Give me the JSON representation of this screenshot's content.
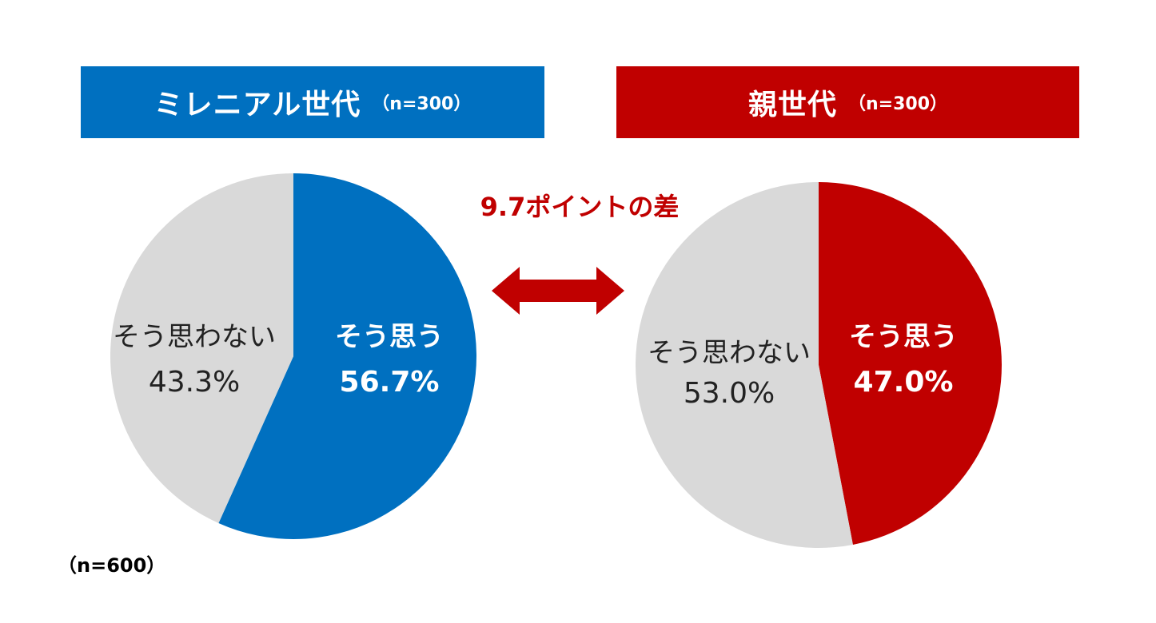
{
  "colors": {
    "millennial": "#0070c0",
    "parent": "#c00000",
    "no": "#d9d9d9",
    "arrow": "#c00000",
    "label_dark": "#222222",
    "label_light": "#ffffff"
  },
  "groups": {
    "left": {
      "title": "ミレニアル世代",
      "n": "（n=300）"
    },
    "right": {
      "title": "親世代",
      "n": "（n=300）"
    }
  },
  "difference_label": "9.7ポイントの差",
  "total_n": "（n=600）",
  "chart_data": [
    {
      "type": "pie",
      "title": "ミレニアル世代",
      "slices": [
        {
          "label": "そう思う",
          "value": 56.7,
          "value_label": "56.7%",
          "color": "#0070c0"
        },
        {
          "label": "そう思わない",
          "value": 43.3,
          "value_label": "43.3%",
          "color": "#d9d9d9"
        }
      ],
      "start_angle": "12 o'clock",
      "direction": "clockwise"
    },
    {
      "type": "pie",
      "title": "親世代",
      "slices": [
        {
          "label": "そう思う",
          "value": 47.0,
          "value_label": "47.0%",
          "color": "#c00000"
        },
        {
          "label": "そう思わない",
          "value": 53.0,
          "value_label": "53.0%",
          "color": "#d9d9d9"
        }
      ],
      "start_angle": "12 o'clock",
      "direction": "clockwise"
    }
  ]
}
